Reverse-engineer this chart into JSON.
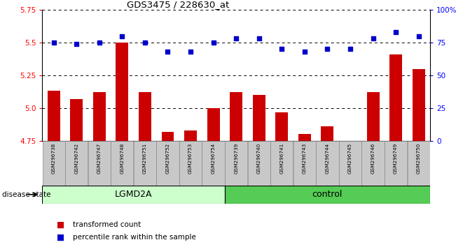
{
  "title": "GDS3475 / 228630_at",
  "samples": [
    "GSM296738",
    "GSM296742",
    "GSM296747",
    "GSM296748",
    "GSM296751",
    "GSM296752",
    "GSM296753",
    "GSM296754",
    "GSM296739",
    "GSM296740",
    "GSM296741",
    "GSM296743",
    "GSM296744",
    "GSM296745",
    "GSM296746",
    "GSM296749",
    "GSM296750"
  ],
  "bar_values": [
    5.13,
    5.07,
    5.12,
    5.5,
    5.12,
    4.82,
    4.83,
    5.0,
    5.12,
    5.1,
    4.97,
    4.8,
    4.86,
    4.74,
    5.12,
    5.41,
    5.3
  ],
  "dot_values_pct": [
    75,
    74,
    75,
    80,
    75,
    68,
    68,
    75,
    78,
    78,
    70,
    68,
    70,
    70,
    78,
    83,
    80
  ],
  "ylim_left": [
    4.75,
    5.75
  ],
  "ylim_right": [
    0,
    100
  ],
  "yticks_left": [
    4.75,
    5.0,
    5.25,
    5.5,
    5.75
  ],
  "yticks_right": [
    0,
    25,
    50,
    75,
    100
  ],
  "ytick_labels_right": [
    "0",
    "25",
    "50",
    "75",
    "100%"
  ],
  "bar_color": "#cc0000",
  "dot_color": "#0000cc",
  "lgmd2a_color": "#ccffcc",
  "control_color": "#55cc55",
  "label_bg": "#c8c8c8",
  "lgmd2a_count": 8,
  "control_count": 9,
  "disease_state_label": "disease state",
  "lgmd2a_label": "LGMD2A",
  "control_label": "control",
  "legend_bar": "transformed count",
  "legend_dot": "percentile rank within the sample"
}
